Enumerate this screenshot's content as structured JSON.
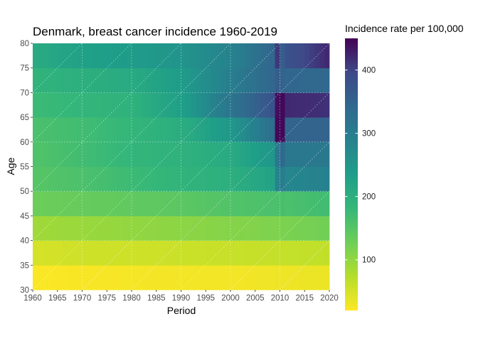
{
  "chart_data": {
    "type": "heatmap",
    "title": "Denmark, breast cancer incidence 1960-2019",
    "xlabel": "Period",
    "ylabel": "Age",
    "legend_title": "Incidence rate per 100,000",
    "legend_position": "right",
    "colormap": "viridis (reversed: low = yellow, high = dark purple)",
    "x_range": [
      1960,
      2020
    ],
    "y_range": [
      30,
      80
    ],
    "x_ticks": [
      "1960",
      "1965",
      "1970",
      "1975",
      "1980",
      "1985",
      "1990",
      "1995",
      "2000",
      "2005",
      "2010",
      "2015",
      "2020"
    ],
    "y_ticks": [
      "30",
      "35",
      "40",
      "45",
      "50",
      "55",
      "60",
      "65",
      "70",
      "75",
      "80"
    ],
    "legend_ticks": [
      "100",
      "200",
      "300",
      "400"
    ],
    "color_range": [
      20,
      450
    ],
    "grid": "dotted white lines at major ticks and diagonal cohort lines",
    "age_groups": [
      "30-34",
      "35-39",
      "40-44",
      "45-49",
      "50-54",
      "55-59",
      "60-64",
      "65-69",
      "70-74",
      "75-79"
    ],
    "periods": [
      1960,
      1961,
      1962,
      1963,
      1964,
      1965,
      1966,
      1967,
      1968,
      1969,
      1970,
      1971,
      1972,
      1973,
      1974,
      1975,
      1976,
      1977,
      1978,
      1979,
      1980,
      1981,
      1982,
      1983,
      1984,
      1985,
      1986,
      1987,
      1988,
      1989,
      1990,
      1991,
      1992,
      1993,
      1994,
      1995,
      1996,
      1997,
      1998,
      1999,
      2000,
      2001,
      2002,
      2003,
      2004,
      2005,
      2006,
      2007,
      2008,
      2009,
      2010,
      2011,
      2012,
      2013,
      2014,
      2015,
      2016,
      2017,
      2018,
      2019
    ],
    "anchor_years": [
      1960,
      1970,
      1980,
      1990,
      2000,
      2008,
      2009,
      2010,
      2011,
      2019
    ],
    "age_series": [
      {
        "age": "30-34",
        "values": [
          22,
          24,
          26,
          28,
          28,
          30,
          31,
          31,
          32,
          33
        ]
      },
      {
        "age": "35-39",
        "values": [
          50,
          55,
          55,
          58,
          60,
          62,
          62,
          62,
          63,
          65
        ]
      },
      {
        "age": "40-44",
        "values": [
          90,
          95,
          100,
          105,
          110,
          115,
          115,
          118,
          118,
          125
        ]
      },
      {
        "age": "45-49",
        "values": [
          130,
          135,
          140,
          145,
          155,
          160,
          160,
          162,
          160,
          170
        ]
      },
      {
        "age": "50-54",
        "values": [
          150,
          160,
          175,
          190,
          200,
          225,
          285,
          300,
          280,
          290
        ]
      },
      {
        "age": "55-59",
        "values": [
          155,
          170,
          185,
          195,
          210,
          250,
          310,
          340,
          310,
          310
        ]
      },
      {
        "age": "60-64",
        "values": [
          160,
          170,
          185,
          205,
          250,
          330,
          445,
          445,
          350,
          350
        ]
      },
      {
        "age": "65-69",
        "values": [
          175,
          185,
          195,
          235,
          320,
          380,
          440,
          445,
          420,
          415
        ]
      },
      {
        "age": "70-74",
        "values": [
          190,
          200,
          210,
          240,
          300,
          345,
          360,
          350,
          345,
          340
        ]
      },
      {
        "age": "75-79",
        "values": [
          210,
          230,
          240,
          255,
          290,
          345,
          410,
          360,
          380,
          420
        ]
      }
    ]
  }
}
